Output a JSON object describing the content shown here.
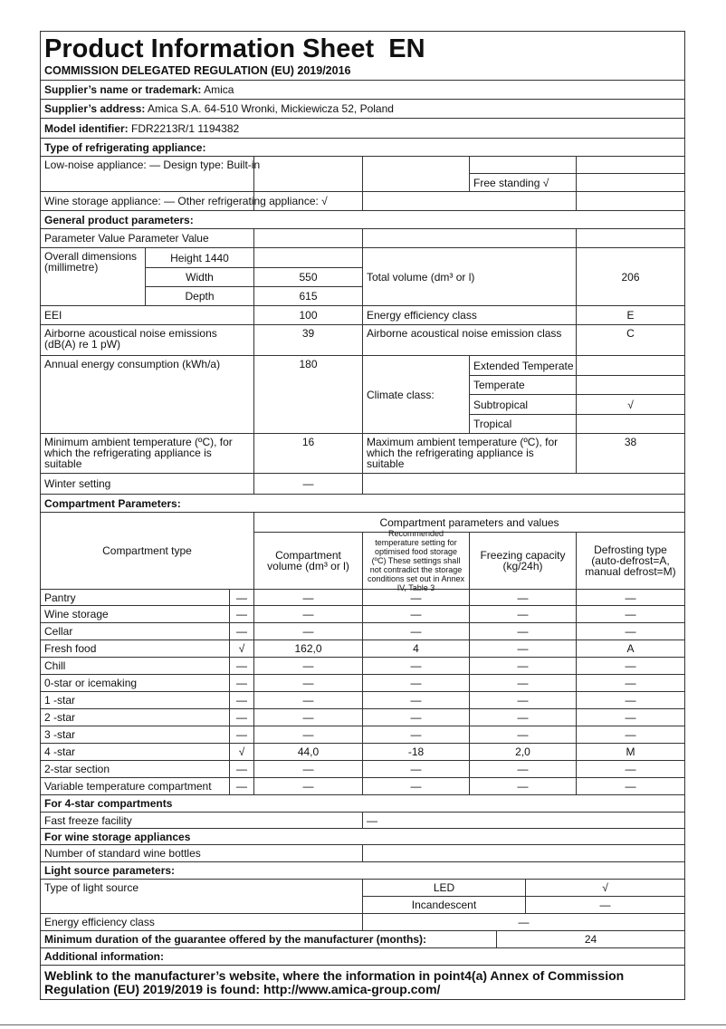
{
  "header": {
    "title": "Product Information Sheet  EN",
    "subtitle": "COMMISSION DELEGATED REGULATION (EU) 2019/2016"
  },
  "supplier": {
    "name_label": "Supplier’s name or trademark:",
    "name": " Amica",
    "address_label": "Supplier’s address:",
    "address": " Amica S.A. 64-510 Wronki, Mickiewicza 52, Poland",
    "model_label": "Model identifier:",
    "model": " FDR2213R/1 1194382"
  },
  "type": {
    "heading": "Type of refrigerating appliance:",
    "low_noise": "Low-noise appliance: — Design type: Built-in",
    "free_standing": "Free standing √",
    "wine": "Wine storage appliance: — Other refrigerating appliance: √"
  },
  "general": {
    "heading": "General product parameters:",
    "param_header": "Parameter Value Parameter Value",
    "dimensions_label": "Overall dimensions (millimetre)",
    "height": "Height 1440",
    "width_label": "Width",
    "width": "550",
    "depth_label": "Depth",
    "depth": "615",
    "total_volume_label": "Total volume (dm³ or l)",
    "total_volume": "206",
    "eei_label": "EEI",
    "eei": "100",
    "eec_label": "Energy efficiency class",
    "eec": "E",
    "noise_label": "Airborne acoustical noise emissions (dB(A) re 1 pW)",
    "noise": "39",
    "noise_class_label": "Airborne acoustical noise emission class",
    "noise_class": "C",
    "annual_label": "Annual energy consumption (kWh/a)",
    "annual": "180",
    "climate_label": "Climate class:",
    "climate": [
      {
        "name": "Extended Temperate",
        "value": ""
      },
      {
        "name": "Temperate",
        "value": ""
      },
      {
        "name": "Subtropical",
        "value": "√"
      },
      {
        "name": "Tropical",
        "value": ""
      }
    ],
    "min_temp_label": "Minimum ambient temperature (ºC), for which the refrigerating appliance is suitable",
    "min_temp": "16",
    "max_temp_label": "Maximum ambient temperature (ºC), for which the refrigerating appliance is suitable",
    "max_temp": "38",
    "winter_label": "Winter setting",
    "winter": "—"
  },
  "compartments": {
    "heading": "Compartment Parameters:",
    "type_header": "Compartment type",
    "group_header": "Compartment parameters and values",
    "columns": [
      "Compartment volume (dm³ or l)",
      "Recommended temperature setting for optimised food storage (ºC) These settings shall not contradict the storage conditions set out in Annex IV, Table 3",
      "Freezing capacity (kg/24h)",
      "Defrosting type (auto-defrost=A, manual defrost=M)"
    ],
    "rows": [
      {
        "name": "Pantry",
        "present": "—",
        "volume": "—",
        "temp": "—",
        "freeze": "—",
        "defrost": "—"
      },
      {
        "name": "Wine storage",
        "present": "—",
        "volume": "—",
        "temp": "—",
        "freeze": "—",
        "defrost": "—"
      },
      {
        "name": "Cellar",
        "present": "—",
        "volume": "—",
        "temp": "—",
        "freeze": "—",
        "defrost": "—"
      },
      {
        "name": "Fresh food",
        "present": "√",
        "volume": "162,0",
        "temp": "4",
        "freeze": "—",
        "defrost": "A"
      },
      {
        "name": "Chill",
        "present": "—",
        "volume": "—",
        "temp": "—",
        "freeze": "—",
        "defrost": "—"
      },
      {
        "name": "0-star or icemaking",
        "present": "—",
        "volume": "—",
        "temp": "—",
        "freeze": "—",
        "defrost": "—"
      },
      {
        "name": "1 -star",
        "present": "—",
        "volume": "—",
        "temp": "—",
        "freeze": "—",
        "defrost": "—"
      },
      {
        "name": "2 -star",
        "present": "—",
        "volume": "—",
        "temp": "—",
        "freeze": "—",
        "defrost": "—"
      },
      {
        "name": "3 -star",
        "present": "—",
        "volume": "—",
        "temp": "—",
        "freeze": "—",
        "defrost": "—"
      },
      {
        "name": "4 -star",
        "present": "√",
        "volume": "44,0",
        "temp": "-18",
        "freeze": "2,0",
        "defrost": "M"
      },
      {
        "name": "2-star section",
        "present": "—",
        "volume": "—",
        "temp": "—",
        "freeze": "—",
        "defrost": "—"
      },
      {
        "name": "Variable temperature compartment",
        "present": "—",
        "volume": "—",
        "temp": "—",
        "freeze": "—",
        "defrost": "—"
      }
    ]
  },
  "four_star": {
    "heading": "For 4-star compartments",
    "fast_freeze_label": "Fast freeze facility",
    "fast_freeze": "—"
  },
  "wine": {
    "heading": "For wine storage appliances",
    "bottles_label": "Number of standard wine bottles",
    "bottles": ""
  },
  "light": {
    "heading": "Light source parameters:",
    "type_label": "Type of light source",
    "led_label": "LED",
    "led": "√",
    "incandescent_label": "Incandescent",
    "incandescent": "—",
    "eec_label": "Energy efficiency class",
    "eec": "—"
  },
  "guarantee": {
    "label": "Minimum duration of the guarantee offered by the manufacturer (months):",
    "value": "24"
  },
  "additional": {
    "heading": "Additional information:",
    "weblink": "Weblink to the manufacturer’s website, where the information in point4(a) Annex of Commission Regulation (EU) 2019/2019 is found: http://www.amica-group.com/"
  }
}
